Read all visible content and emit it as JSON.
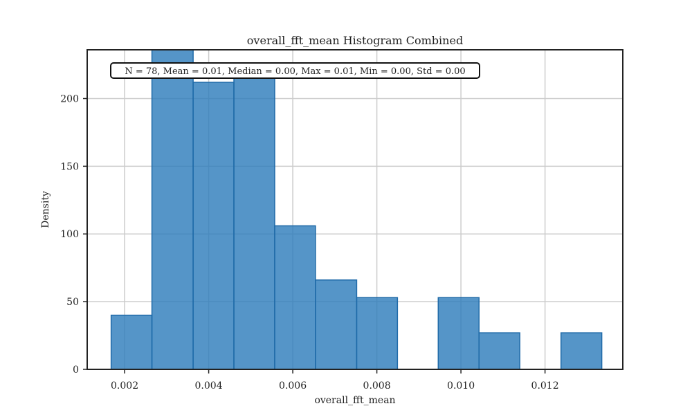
{
  "chart_data": {
    "type": "bar",
    "title": "overall_fft_mean Histogram Combined",
    "xlabel": "overall_fft_mean",
    "ylabel": "Density",
    "stats_text": "N = 78, Mean = 0.01, Median = 0.00, Max = 0.01, Min = 0.00, Std = 0.00",
    "xlim": [
      0.00111,
      0.01385
    ],
    "ylim": [
      0,
      236
    ],
    "x_ticks": [
      0.002,
      0.004,
      0.006,
      0.008,
      0.01,
      0.012
    ],
    "x_tick_labels": [
      "0.002",
      "0.004",
      "0.006",
      "0.008",
      "0.010",
      "0.012"
    ],
    "y_ticks": [
      0,
      50,
      100,
      150,
      200
    ],
    "y_tick_labels": [
      "0",
      "50",
      "100",
      "150",
      "200"
    ],
    "grid": true,
    "bin_edges": [
      0.00168,
      0.00265,
      0.00363,
      0.0046,
      0.00557,
      0.00654,
      0.00752,
      0.00849,
      0.00946,
      0.01043,
      0.0114,
      0.01238,
      0.01335
    ],
    "values": [
      40,
      266,
      212,
      225,
      106,
      66,
      53,
      0,
      53,
      27,
      0,
      27
    ],
    "colors": {
      "fill": "#2b7bba",
      "edge": "#1f6aa8",
      "grid": "#cccccc",
      "axis": "#222222"
    }
  }
}
